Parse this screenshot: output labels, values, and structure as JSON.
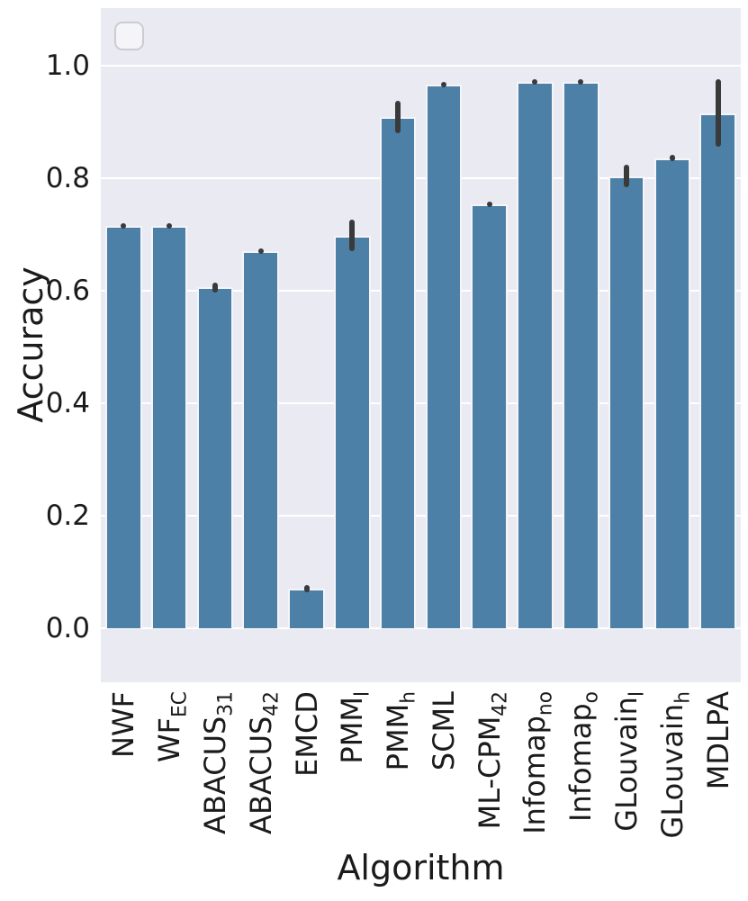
{
  "figure": {
    "legend": {
      "visible": true,
      "entries": []
    }
  },
  "chart_data": {
    "type": "bar",
    "title": "",
    "xlabel": "Algorithm",
    "ylabel": "Accuracy",
    "ylim": [
      -0.1,
      1.1
    ],
    "grid": true,
    "legend_position": "upper-left-empty",
    "yticks": [
      0.0,
      0.2,
      0.4,
      0.6,
      0.8,
      1.0
    ],
    "ytick_labels": [
      "0.0",
      "0.2",
      "0.4",
      "0.6",
      "0.8",
      "1.0"
    ],
    "categories": [
      {
        "main": "NWF",
        "sub": ""
      },
      {
        "main": "WF",
        "sub": "EC"
      },
      {
        "main": "ABACUS",
        "sub": "31"
      },
      {
        "main": "ABACUS",
        "sub": "42"
      },
      {
        "main": "EMCD",
        "sub": ""
      },
      {
        "main": "PMM",
        "sub": "l"
      },
      {
        "main": "PMM",
        "sub": "h"
      },
      {
        "main": "SCML",
        "sub": ""
      },
      {
        "main": "ML-CPM",
        "sub": "42"
      },
      {
        "main": "Infomap",
        "sub": "no"
      },
      {
        "main": "Infomap",
        "sub": "o"
      },
      {
        "main": "GLouvain",
        "sub": "l"
      },
      {
        "main": "GLouvain",
        "sub": "h"
      },
      {
        "main": "MDLPA",
        "sub": ""
      }
    ],
    "values": [
      0.715,
      0.715,
      0.605,
      0.67,
      0.07,
      0.697,
      0.908,
      0.965,
      0.753,
      0.97,
      0.97,
      0.803,
      0.835,
      0.915
    ],
    "errors": [
      0.004,
      0.004,
      0.009,
      0.005,
      0.006,
      0.028,
      0.029,
      0.004,
      0.005,
      0.004,
      0.004,
      0.02,
      0.006,
      0.06
    ],
    "colors": {
      "bar": "#4c80a6",
      "error": "#3a3a3a",
      "plot_background": "#eaeaf2",
      "grid": "#ffffff",
      "text": "#1b1b1b"
    }
  }
}
